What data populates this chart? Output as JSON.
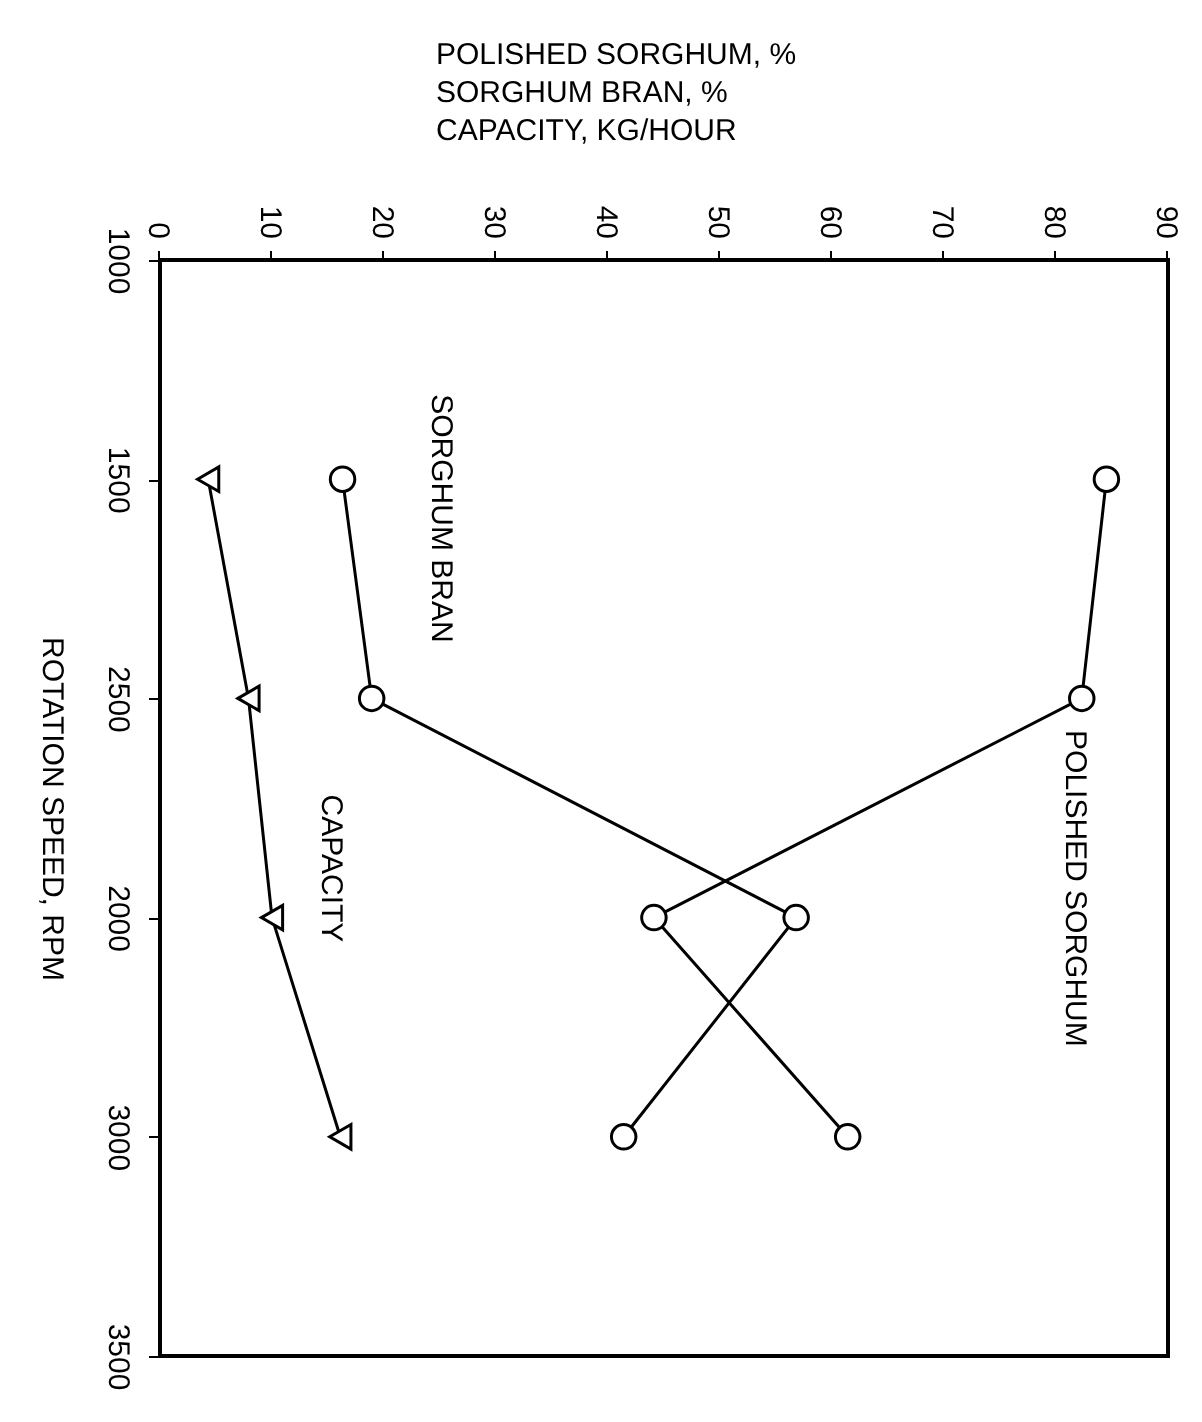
{
  "chart_data": {
    "type": "line",
    "orientation": "horizontal",
    "xlabel": "POLISHED SORGHUM, %\nSORGHUM BRAN, %\nCAPACITY, KG/HOUR",
    "ylabel": "ROTATION SPEED, RPM",
    "categories": [
      "1000",
      "1500",
      "2500",
      "2000",
      "3000",
      "3500"
    ],
    "xlim": [
      0,
      90
    ],
    "xticks": [
      0,
      10,
      20,
      30,
      40,
      50,
      60,
      70,
      80,
      90
    ],
    "series": [
      {
        "name": "POLISHED SORGHUM",
        "color": "#000000",
        "marker": "circle",
        "values": [
          null,
          84.5,
          82.3,
          44.1,
          61.4,
          null
        ]
      },
      {
        "name": "SORGHUM BRAN",
        "color": "#000000",
        "marker": "circle",
        "values": [
          null,
          16.3,
          18.9,
          56.8,
          41.4,
          null
        ]
      },
      {
        "name": "CAPACITY",
        "color": "#000000",
        "marker": "triangle",
        "values": [
          null,
          4.3,
          7.9,
          10,
          16.1,
          null
        ]
      }
    ],
    "grid": false
  }
}
